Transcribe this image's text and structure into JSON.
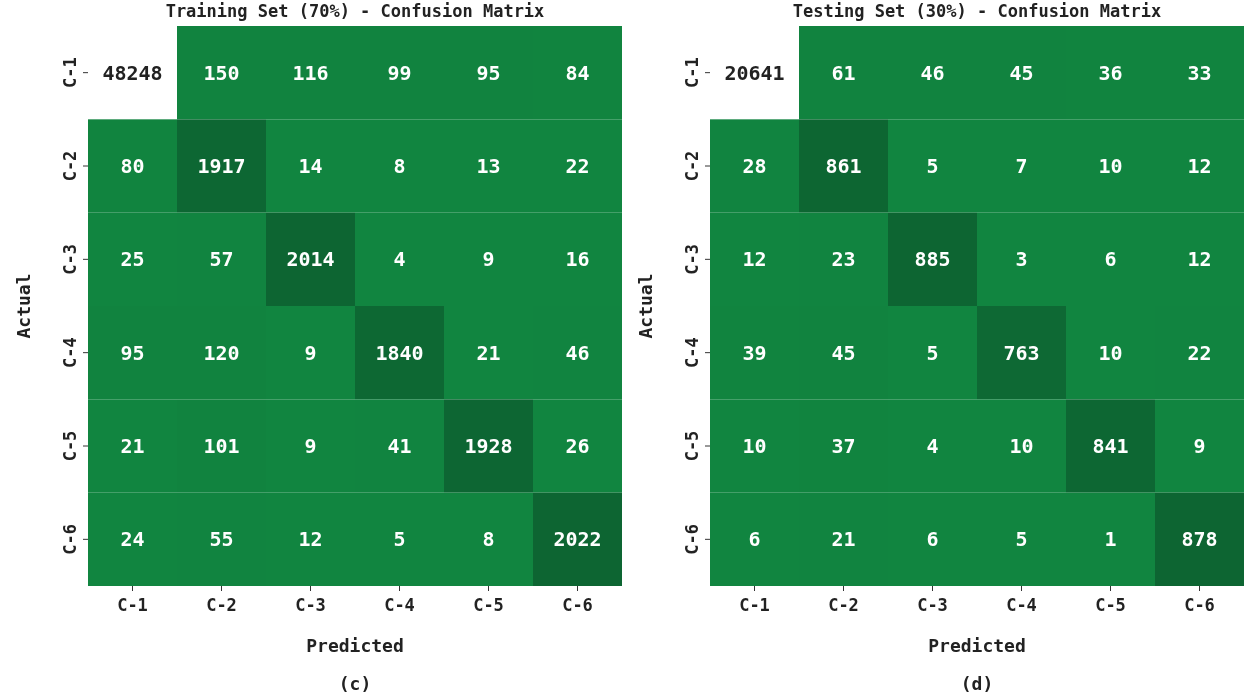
{
  "chart_data": [
    {
      "type": "heatmap",
      "title": "Training Set (70%) - Confusion Matrix",
      "xlabel": "Predicted",
      "ylabel": "Actual",
      "annotations": [
        "(c)"
      ],
      "data_labels": true,
      "categories": [
        "C-1",
        "C-2",
        "C-3",
        "C-4",
        "C-5",
        "C-6"
      ],
      "y_categories": [
        "C-1",
        "C-2",
        "C-3",
        "C-4",
        "C-5",
        "C-6"
      ],
      "cells": [
        [
          48248,
          150,
          116,
          99,
          95,
          84
        ],
        [
          80,
          1917,
          14,
          8,
          13,
          22
        ],
        [
          25,
          57,
          2014,
          4,
          9,
          16
        ],
        [
          95,
          120,
          9,
          1840,
          21,
          46
        ],
        [
          21,
          101,
          9,
          41,
          1928,
          26
        ],
        [
          24,
          55,
          12,
          5,
          8,
          2022
        ]
      ]
    },
    {
      "type": "heatmap",
      "title": "Testing Set (30%) - Confusion Matrix",
      "xlabel": "Predicted",
      "ylabel": "Actual",
      "annotations": [
        "(d)"
      ],
      "data_labels": true,
      "categories": [
        "C-1",
        "C-2",
        "C-3",
        "C-4",
        "C-5",
        "C-6"
      ],
      "y_categories": [
        "C-1",
        "C-2",
        "C-3",
        "C-4",
        "C-5",
        "C-6"
      ],
      "cells": [
        [
          20641,
          61,
          46,
          45,
          36,
          33
        ],
        [
          28,
          861,
          5,
          7,
          10,
          12
        ],
        [
          12,
          23,
          885,
          3,
          6,
          12
        ],
        [
          39,
          45,
          5,
          763,
          10,
          22
        ],
        [
          10,
          37,
          4,
          10,
          841,
          9
        ],
        [
          6,
          21,
          6,
          5,
          1,
          878
        ]
      ]
    }
  ]
}
